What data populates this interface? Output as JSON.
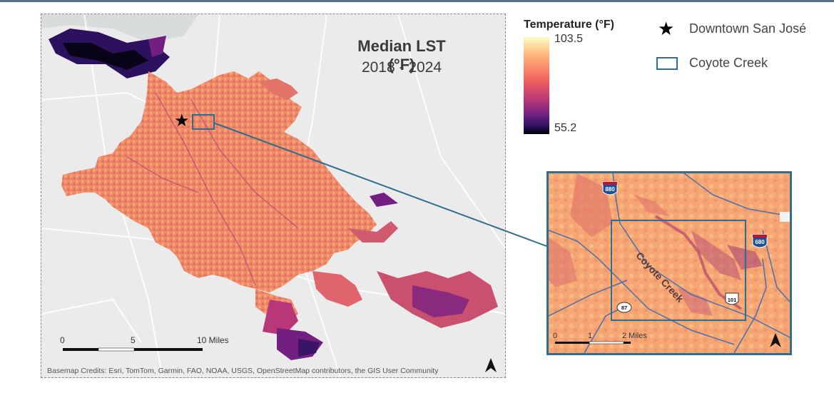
{
  "map": {
    "title": "Median LST (°F)",
    "subtitle": "2018 - 2024",
    "credits": "Basemap Credits: Esri, TomTom, Garmin, FAO, NOAA, USGS, OpenStreetMap contributors, the GIS User Community",
    "scale_labels": [
      "0",
      "5",
      "10 Miles"
    ]
  },
  "legend": {
    "title": "Temperature (°F)",
    "max": "103.5",
    "min": "55.2",
    "downtown_label": "Downtown San José",
    "creek_label": "Coyote Creek",
    "colors": [
      "#fcfdbf",
      "#feb078",
      "#f1605d",
      "#b73779",
      "#721f81",
      "#2c115f",
      "#000004"
    ]
  },
  "inset": {
    "creek_name": "Coyote Creek",
    "highways": [
      "880",
      "680",
      "87",
      "101"
    ],
    "scale_labels": [
      "0",
      "1",
      "2 Miles"
    ]
  },
  "icons": [
    "star-icon",
    "north-arrow-icon",
    "interstate-shield-icon",
    "us-route-shield-icon",
    "state-route-shield-icon"
  ]
}
